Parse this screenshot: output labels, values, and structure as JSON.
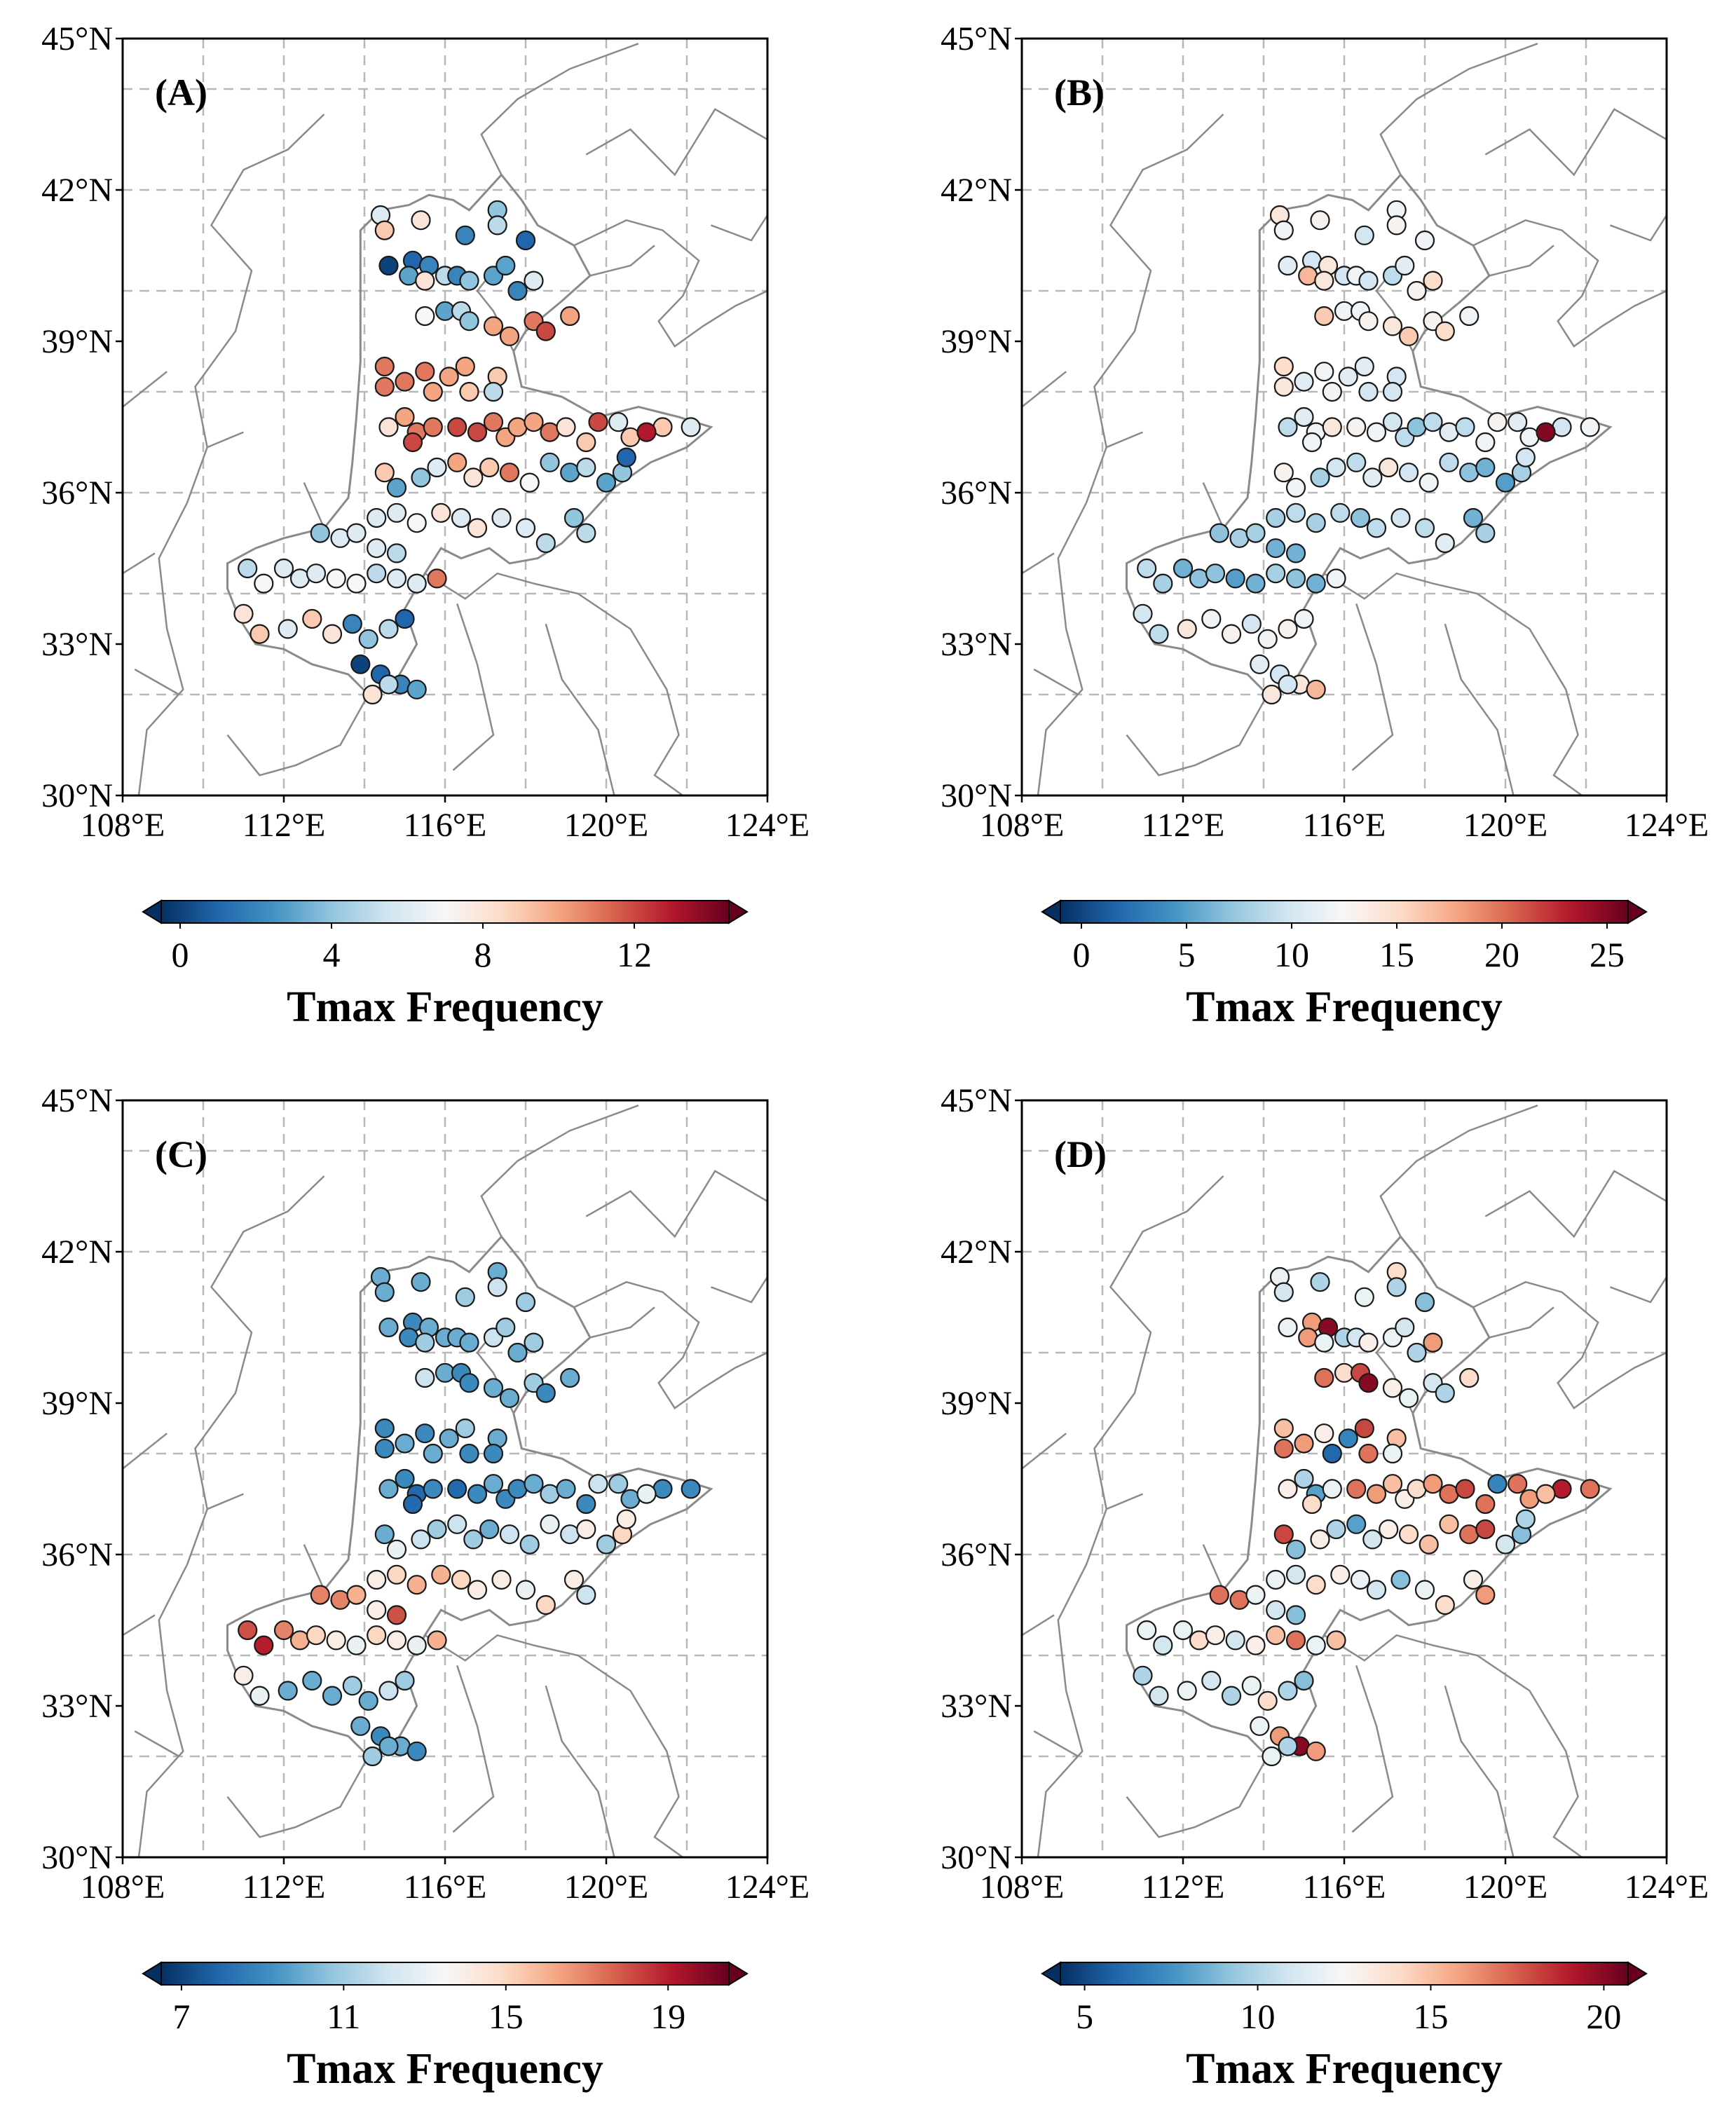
{
  "figure": {
    "axes": {
      "lon_ticks": [
        108,
        112,
        116,
        120,
        124
      ],
      "lat_ticks": [
        30,
        33,
        36,
        39,
        42,
        45
      ],
      "lon_tick_labels": [
        "108°E",
        "112°E",
        "116°E",
        "120°E",
        "124°E"
      ],
      "lat_tick_labels": [
        "30°N",
        "33°N",
        "36°N",
        "39°N",
        "42°N",
        "45°N"
      ],
      "xlim": [
        108,
        124
      ],
      "ylim": [
        30,
        45
      ]
    },
    "colors": {
      "map_outline": "#8a8a8a",
      "grid": "#b8b8b8",
      "marker_edge": "#1a1a1a",
      "scale": [
        "#053061",
        "#2166ac",
        "#4393c3",
        "#92c5de",
        "#d1e5f0",
        "#f7f7f7",
        "#fddbc7",
        "#f4a582",
        "#d6604d",
        "#b2182b",
        "#67001f"
      ]
    },
    "panels": [
      {
        "label": "(A)",
        "colorbar": {
          "label": "Tmax Frequency",
          "ticks": [
            "0",
            "4",
            "8",
            "12"
          ],
          "vmin": -0.5,
          "vmax": 14.5,
          "tick_values": [
            0,
            4,
            8,
            12
          ]
        },
        "values": [
          6,
          9,
          8,
          2,
          4,
          5,
          1,
          0,
          1,
          2,
          3,
          8,
          5,
          2,
          4,
          3,
          3,
          2,
          6,
          7,
          3,
          5,
          4,
          10,
          10,
          11,
          12,
          10,
          11,
          11,
          11,
          11,
          10,
          10,
          10,
          9,
          9,
          5,
          8,
          10,
          11,
          11,
          12,
          12,
          12,
          11,
          10,
          10,
          10,
          11,
          8,
          9,
          6,
          9,
          9,
          6,
          13,
          12,
          9,
          3,
          4,
          6,
          10,
          8,
          9,
          11,
          7,
          4,
          3,
          5,
          3,
          4,
          1,
          6,
          6,
          7,
          8,
          6,
          8,
          6,
          6,
          5,
          4,
          5,
          4,
          6,
          6,
          6,
          5,
          5,
          7,
          6,
          6,
          6,
          7,
          7,
          5,
          6,
          6,
          11,
          8,
          9
        ]
      },
      {
        "label": "(B)",
        "colorbar": {
          "label": "Tmax Frequency",
          "ticks": [
            "0",
            "5",
            "10",
            "15",
            "20",
            "25"
          ],
          "vmin": -1,
          "vmax": 26,
          "tick_values": [
            0,
            5,
            10,
            15,
            20,
            25
          ]
        },
        "values": [
          14,
          12,
          13,
          10,
          12,
          13,
          12,
          11,
          10,
          14,
          17,
          14,
          10,
          12,
          10,
          9,
          11,
          13,
          15,
          16,
          12,
          12,
          13,
          14,
          16,
          13,
          15,
          12,
          15,
          14,
          11,
          12,
          12,
          11,
          11,
          10,
          10,
          10,
          9,
          11,
          12,
          14,
          12,
          13,
          12,
          10,
          9,
          7,
          9,
          11,
          9,
          12,
          11,
          12,
          10,
          12,
          25,
          13,
          13,
          12,
          8,
          10,
          9,
          11,
          14,
          10,
          12,
          9,
          7,
          6,
          5,
          8,
          10,
          8,
          9,
          8,
          9,
          7,
          9,
          10,
          9,
          11,
          6,
          8,
          7,
          8,
          8,
          6,
          6,
          9,
          8,
          6,
          7,
          7,
          5,
          6,
          8,
          7,
          6,
          12,
          10,
          9
        ]
      },
      {
        "label": "(C)",
        "colorbar": {
          "label": "Tmax Frequency",
          "ticks": [
            "7",
            "11",
            "15",
            "19"
          ],
          "vmin": 6.5,
          "vmax": 20.5,
          "tick_values": [
            7,
            11,
            15,
            19
          ]
        },
        "values": [
          10,
          10,
          10,
          11,
          10,
          12,
          11,
          10,
          9,
          10,
          9,
          11,
          10,
          10,
          10,
          12,
          11,
          10,
          11,
          12,
          10,
          9,
          9,
          10,
          10,
          11,
          9,
          10,
          9,
          9,
          10,
          9,
          10,
          10,
          11,
          9,
          10,
          9,
          10,
          9,
          8,
          9,
          8,
          8,
          9,
          10,
          9,
          9,
          10,
          11,
          10,
          9,
          11,
          10,
          9,
          9,
          13,
          12,
          10,
          13,
          12,
          11,
          12,
          11,
          10,
          12,
          11,
          13,
          12,
          14,
          11,
          15,
          14,
          14,
          15,
          16,
          16,
          15,
          14,
          14,
          13,
          15,
          14,
          12,
          17,
          17,
          16,
          14,
          18,
          18,
          19,
          17,
          16,
          15,
          14,
          13,
          15,
          14,
          13,
          16,
          14,
          13
        ]
      },
      {
        "label": "(D)",
        "colorbar": {
          "label": "Tmax Frequency",
          "ticks": [
            "5",
            "10",
            "15",
            "20"
          ],
          "vmin": 4.3,
          "vmax": 20.7,
          "tick_values": [
            5,
            10,
            15,
            20
          ]
        },
        "values": [
          12,
          11,
          10,
          12,
          14,
          10,
          9,
          12,
          16,
          20,
          16,
          12,
          10,
          11,
          13,
          12,
          11,
          10,
          16,
          17,
          14,
          18,
          20,
          13,
          12,
          11,
          10,
          14,
          15,
          17,
          16,
          13,
          6,
          7,
          18,
          17,
          15,
          12,
          13,
          10,
          8,
          12,
          14,
          17,
          16,
          15,
          13,
          14,
          16,
          17,
          18,
          17,
          17,
          16,
          19,
          17,
          15,
          7,
          18,
          9,
          13,
          10,
          8,
          11,
          13,
          14,
          15,
          15,
          17,
          18,
          11,
          9,
          10,
          12,
          11,
          14,
          13,
          12,
          11,
          9,
          12,
          14,
          13,
          16,
          17,
          17,
          12,
          11,
          9,
          12,
          11,
          12,
          14,
          13,
          11,
          13,
          15,
          17,
          12,
          15,
          10,
          11
        ]
      }
    ]
  }
}
